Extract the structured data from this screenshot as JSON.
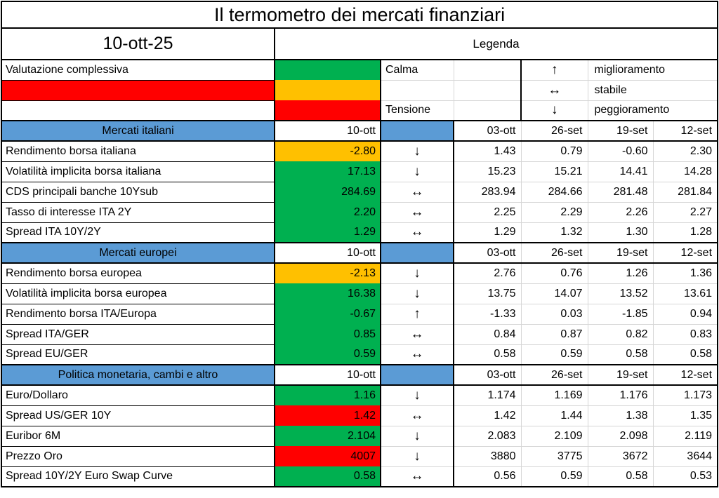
{
  "title": "Il termometro dei mercati finanziari",
  "date": "10-ott-25",
  "legend": {
    "heading": "Legenda",
    "overall_label": "Valutazione complessiva",
    "overall_status_color": "#FF0000",
    "scale": [
      {
        "label": "Calma",
        "color": "#00B050"
      },
      {
        "label": "",
        "color": "#FFC000"
      },
      {
        "label": "Tensione",
        "color": "#FF0000"
      }
    ],
    "trend": [
      {
        "symbol": "↑",
        "label": "miglioramento"
      },
      {
        "symbol": "↔",
        "label": "stabile"
      },
      {
        "symbol": "↓",
        "label": "peggioramento"
      }
    ]
  },
  "colors": {
    "section_header_bg": "#5B9BD5",
    "calm_green": "#00B050",
    "warning_amber": "#FFC000",
    "tension_red": "#FF0000"
  },
  "columns": {
    "current": "10-ott",
    "history": [
      "03-ott",
      "26-set",
      "19-set",
      "12-set"
    ]
  },
  "sections": [
    {
      "name": "Mercati italiani",
      "rows": [
        {
          "label": "Rendimento borsa italiana",
          "value": "-2.80",
          "color": "#FFC000",
          "trend": "↓",
          "history": [
            "1.43",
            "0.79",
            "-0.60",
            "2.30"
          ]
        },
        {
          "label": "Volatilità implicita borsa italiana",
          "value": "17.13",
          "color": "#00B050",
          "trend": "↓",
          "history": [
            "15.23",
            "15.21",
            "14.41",
            "14.28"
          ]
        },
        {
          "label": "CDS principali banche 10Ysub",
          "value": "284.69",
          "color": "#00B050",
          "trend": "↔",
          "history": [
            "283.94",
            "284.66",
            "281.48",
            "281.84"
          ]
        },
        {
          "label": "Tasso di interesse ITA 2Y",
          "value": "2.20",
          "color": "#00B050",
          "trend": "↔",
          "history": [
            "2.25",
            "2.29",
            "2.26",
            "2.27"
          ]
        },
        {
          "label": "Spread ITA 10Y/2Y",
          "value": "1.29",
          "color": "#00B050",
          "trend": "↔",
          "history": [
            "1.29",
            "1.32",
            "1.30",
            "1.28"
          ]
        }
      ]
    },
    {
      "name": "Mercati europei",
      "rows": [
        {
          "label": "Rendimento borsa europea",
          "value": "-2.13",
          "color": "#FFC000",
          "trend": "↓",
          "history": [
            "2.76",
            "0.76",
            "1.26",
            "1.36"
          ]
        },
        {
          "label": "Volatilità implicita borsa europea",
          "value": "16.38",
          "color": "#00B050",
          "trend": "↓",
          "history": [
            "13.75",
            "14.07",
            "13.52",
            "13.61"
          ]
        },
        {
          "label": "Rendimento borsa ITA/Europa",
          "value": "-0.67",
          "color": "#00B050",
          "trend": "↑",
          "history": [
            "-1.33",
            "0.03",
            "-1.85",
            "0.94"
          ]
        },
        {
          "label": "Spread ITA/GER",
          "value": "0.85",
          "color": "#00B050",
          "trend": "↔",
          "history": [
            "0.84",
            "0.87",
            "0.82",
            "0.83"
          ]
        },
        {
          "label": "Spread EU/GER",
          "value": "0.59",
          "color": "#00B050",
          "trend": "↔",
          "history": [
            "0.58",
            "0.59",
            "0.58",
            "0.58"
          ]
        }
      ]
    },
    {
      "name": "Politica monetaria, cambi e altro",
      "rows": [
        {
          "label": "Euro/Dollaro",
          "value": "1.16",
          "color": "#00B050",
          "trend": "↓",
          "history": [
            "1.174",
            "1.169",
            "1.176",
            "1.173"
          ]
        },
        {
          "label": "Spread US/GER 10Y",
          "value": "1.42",
          "color": "#FF0000",
          "trend": "↔",
          "history": [
            "1.42",
            "1.44",
            "1.38",
            "1.35"
          ]
        },
        {
          "label": "Euribor 6M",
          "value": "2.104",
          "color": "#00B050",
          "trend": "↓",
          "history": [
            "2.083",
            "2.109",
            "2.098",
            "2.119"
          ]
        },
        {
          "label": "Prezzo Oro",
          "value": "4007",
          "color": "#FF0000",
          "trend": "↓",
          "history": [
            "3880",
            "3775",
            "3672",
            "3644"
          ]
        },
        {
          "label": "Spread 10Y/2Y Euro Swap Curve",
          "value": "0.58",
          "color": "#00B050",
          "trend": "↔",
          "history": [
            "0.56",
            "0.59",
            "0.58",
            "0.53"
          ]
        }
      ]
    }
  ]
}
